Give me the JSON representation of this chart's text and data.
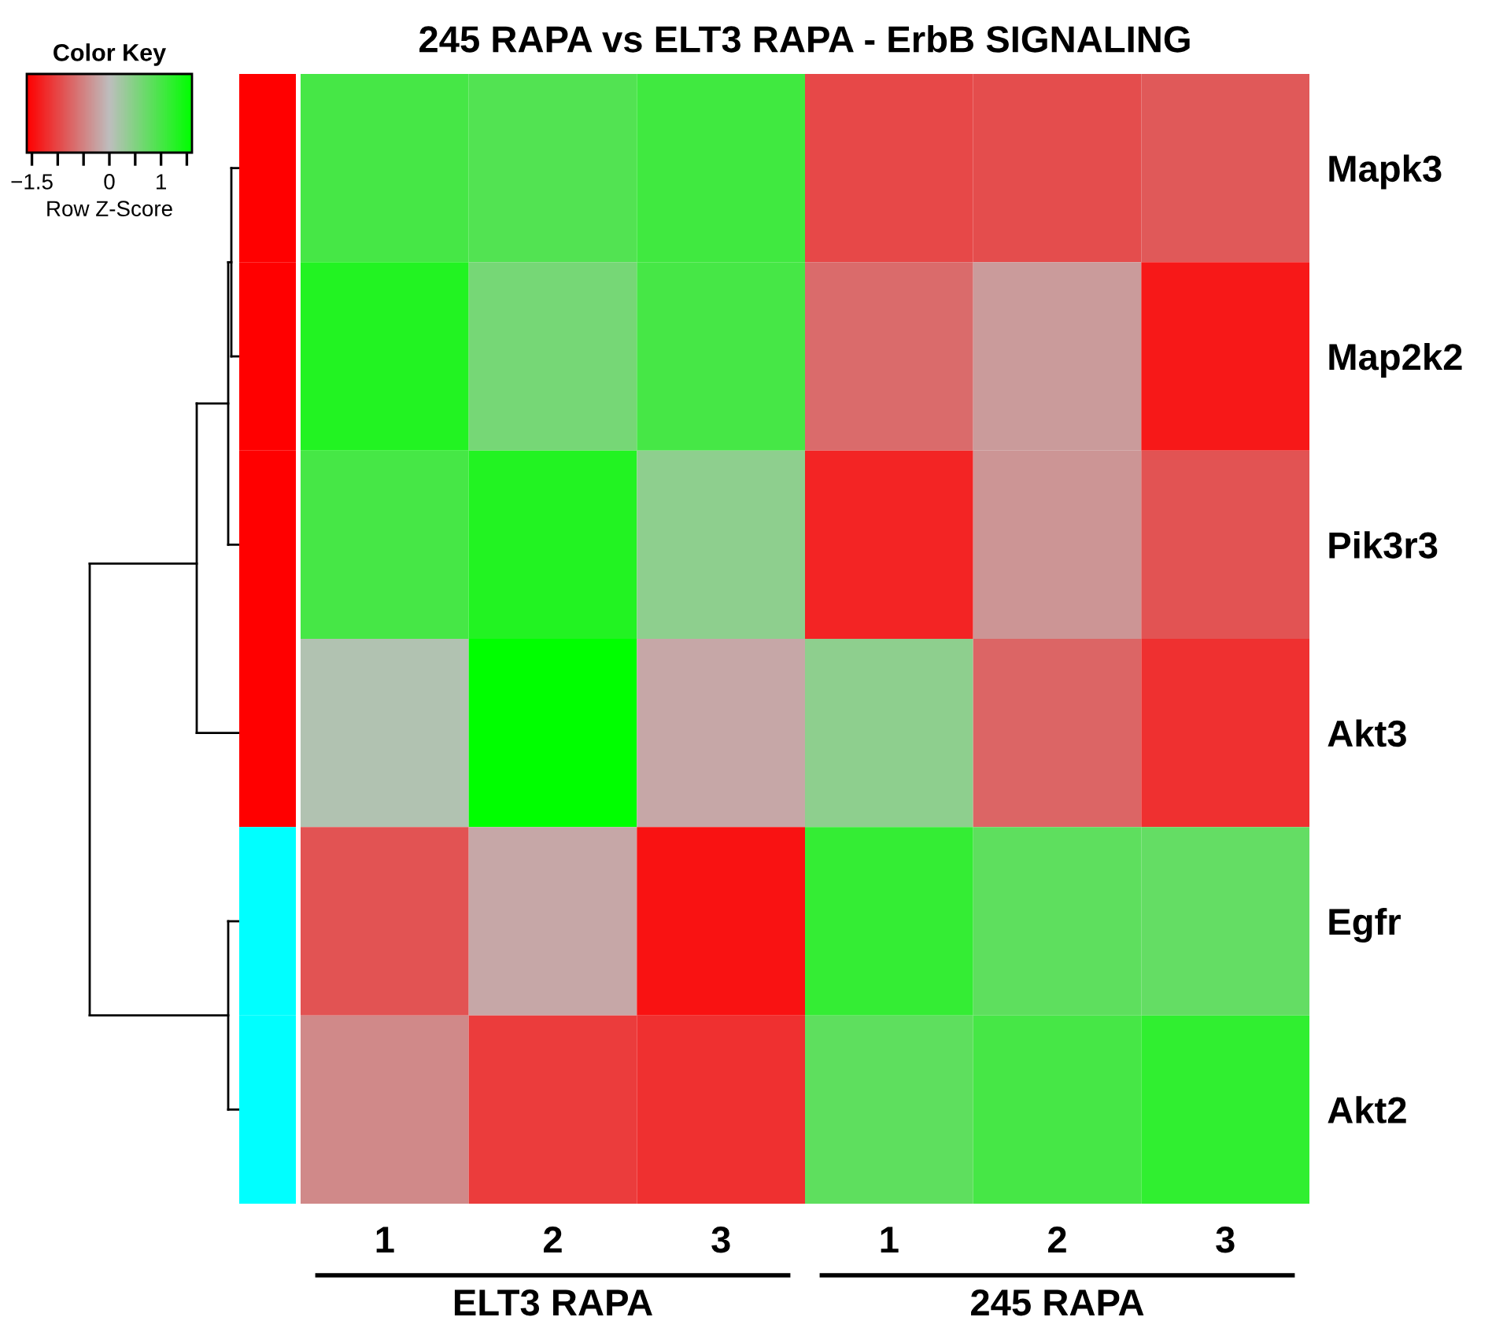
{
  "chart_data": {
    "type": "heatmap",
    "title": "245 RAPA vs ELT3 RAPA - ErbB SIGNALING",
    "categories": [
      "1",
      "2",
      "3",
      "1",
      "2",
      "3"
    ],
    "y_categories": [
      "Mapk3",
      "Map2k2",
      "Pik3r3",
      "Akt3",
      "Egfr",
      "Akt2"
    ],
    "cells": [
      [
        1.0,
        0.9,
        1.05,
        -1.0,
        -0.95,
        -0.85
      ],
      [
        1.3,
        0.6,
        1.0,
        -0.7,
        -0.3,
        -1.4
      ],
      [
        1.0,
        1.3,
        0.4,
        -1.3,
        -0.35,
        -0.9
      ],
      [
        0.1,
        1.6,
        -0.2,
        0.4,
        -0.75,
        -1.2
      ],
      [
        -0.9,
        -0.2,
        -1.45,
        1.15,
        0.8,
        0.75
      ],
      [
        -0.45,
        -1.1,
        -1.2,
        0.8,
        1.0,
        1.2
      ]
    ],
    "clim": [
      -1.6,
      1.6
    ],
    "cticks": [
      -1.5,
      {
        "value": -1,
        "label": null
      },
      {
        "value": -0.5,
        "label": null
      },
      0,
      {
        "value": 0.5,
        "label": null
      },
      1,
      {
        "value": 1.5,
        "label": null
      }
    ],
    "clabel": "Row Z-Score",
    "annotations": [
      "Color Key",
      "ELT3 RAPA",
      "245 RAPA"
    ]
  }
}
